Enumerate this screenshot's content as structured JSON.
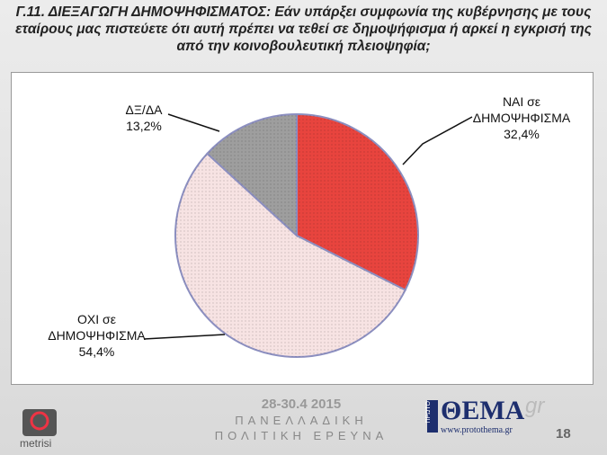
{
  "chart_data": {
    "type": "pie",
    "title": "Γ.11. ΔΙΕΞΑΓΩΓΗ ΔΗΜΟΨΗΦΙΣΜΑΤΟΣ: Εάν υπάρξει συμφωνία της κυβέρνησης με τους εταίρους μας πιστεύετε ότι αυτή πρέπει να τεθεί σε δημοψήφισμα ή αρκεί η εγκρισή της από την κοινοβουλευτική πλειοψηφία;",
    "categories": [
      "ΝΑΙ σε ΔΗΜΟΨΗΦΙΣΜΑ",
      "ΟΧΙ σε ΔΗΜΟΨΗΦΙΣΜΑ",
      "ΔΞ/ΔΑ"
    ],
    "values": [
      32.4,
      54.4,
      13.2
    ],
    "value_labels": [
      "32,4%",
      "54,4%",
      "13,2%"
    ],
    "colors": [
      "#e8443e",
      "#f7e3e3",
      "#9e9e9e"
    ]
  },
  "footer": {
    "date": "28-30.4 2015",
    "line1": "ΠΑΝΕΛΛΑΔΙΚΗ",
    "line2": "ΠΟΛΙΤΙΚΗ ΕΡΕΥΝΑ",
    "logo_left": "metrisi",
    "logo_small": "ΠΡΩΤΟ",
    "logo_main": "ΘΕΜΑ",
    "logo_gr": "gr",
    "url": "www.protothema.gr",
    "page": "18"
  }
}
